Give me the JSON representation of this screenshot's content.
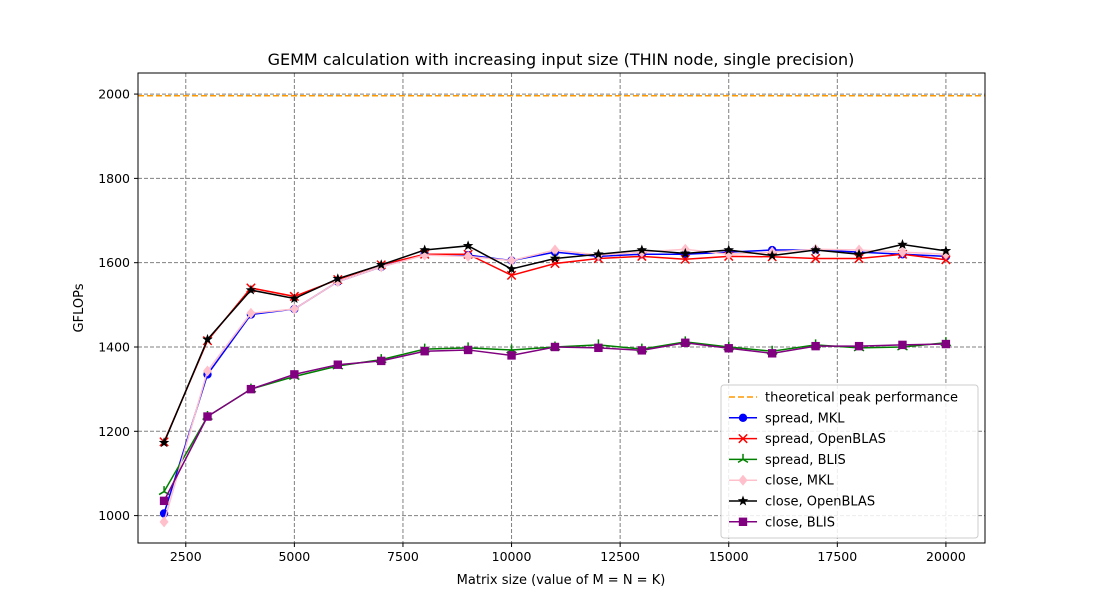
{
  "chart_data": {
    "type": "line",
    "title": "GEMM calculation with increasing input size (THIN node, single precision)",
    "xlabel": "Matrix size (value of M = N = K)",
    "ylabel": "GFLOPs",
    "xlim": [
      1400,
      20900
    ],
    "ylim": [
      935,
      2050
    ],
    "xticks": [
      2500,
      5000,
      7500,
      10000,
      12500,
      15000,
      17500,
      20000
    ],
    "yticks": [
      1000,
      1200,
      1400,
      1600,
      1800,
      2000
    ],
    "grid": true,
    "legend_position": "lower right",
    "x": [
      2000,
      3000,
      4000,
      5000,
      6000,
      7000,
      8000,
      9000,
      10000,
      11000,
      12000,
      13000,
      14000,
      15000,
      16000,
      17000,
      18000,
      19000,
      20000
    ],
    "reference_line": {
      "name": "theoretical peak performance",
      "y": 1996,
      "color": "#ff9900",
      "style": "dashed"
    },
    "series": [
      {
        "name": "spread, MKL",
        "color": "#0000ff",
        "marker": "circle",
        "values": [
          1005,
          1335,
          1477,
          1490,
          1555,
          1590,
          1620,
          1618,
          1605,
          1625,
          1615,
          1620,
          1620,
          1625,
          1630,
          1630,
          1625,
          1620,
          1615
        ]
      },
      {
        "name": "spread, OpenBLAS",
        "color": "#ff0000",
        "marker": "x",
        "values": [
          1175,
          1415,
          1540,
          1520,
          1560,
          1595,
          1620,
          1620,
          1570,
          1598,
          1610,
          1615,
          1608,
          1615,
          1614,
          1610,
          1610,
          1620,
          1607
        ]
      },
      {
        "name": "spread, BLIS",
        "color": "#008000",
        "marker": "tri",
        "values": [
          1057,
          1235,
          1300,
          1330,
          1355,
          1370,
          1395,
          1398,
          1393,
          1400,
          1405,
          1395,
          1412,
          1400,
          1390,
          1405,
          1398,
          1400,
          1410
        ]
      },
      {
        "name": "close, MKL",
        "color": "#ffc0cb",
        "marker": "diamond",
        "values": [
          985,
          1343,
          1480,
          1490,
          1555,
          1590,
          1618,
          1615,
          1605,
          1630,
          1618,
          1625,
          1632,
          1620,
          1625,
          1632,
          1630,
          1625,
          1620
        ]
      },
      {
        "name": "close, OpenBLAS",
        "color": "#000000",
        "marker": "star",
        "values": [
          1173,
          1418,
          1535,
          1515,
          1562,
          1595,
          1630,
          1640,
          1585,
          1610,
          1620,
          1630,
          1622,
          1630,
          1617,
          1630,
          1620,
          1643,
          1628
        ]
      },
      {
        "name": "close, BLIS",
        "color": "#800080",
        "marker": "square",
        "values": [
          1035,
          1235,
          1300,
          1335,
          1358,
          1367,
          1390,
          1393,
          1380,
          1400,
          1398,
          1392,
          1410,
          1397,
          1385,
          1402,
          1402,
          1405,
          1407
        ]
      }
    ]
  }
}
